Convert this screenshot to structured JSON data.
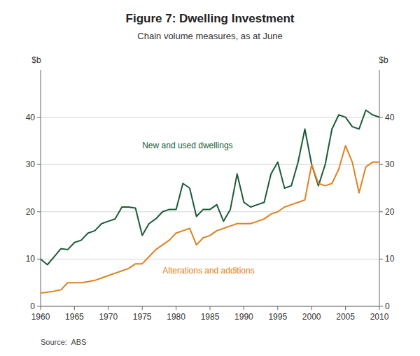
{
  "chart_data": {
    "type": "line",
    "title": "Figure 7: Dwelling Investment",
    "subtitle": "Chain volume measures, as at June",
    "source": "Source:  ABS",
    "ylabel": "$b",
    "y2label": "$b",
    "xlim": [
      1960,
      2010
    ],
    "xticks": [
      1960,
      1965,
      1970,
      1975,
      1980,
      1985,
      1990,
      1995,
      2000,
      2005,
      2010
    ],
    "ylim": [
      0,
      50
    ],
    "yticks": [
      0,
      10,
      20,
      30,
      40
    ],
    "y2lim": [
      0,
      50
    ],
    "y2ticks": [
      0,
      10,
      20,
      30,
      40
    ],
    "grid": true,
    "x": [
      1960,
      1961,
      1962,
      1963,
      1964,
      1965,
      1966,
      1967,
      1968,
      1969,
      1970,
      1971,
      1972,
      1973,
      1974,
      1975,
      1976,
      1977,
      1978,
      1979,
      1980,
      1981,
      1982,
      1983,
      1984,
      1985,
      1986,
      1987,
      1988,
      1989,
      1990,
      1991,
      1992,
      1993,
      1994,
      1995,
      1996,
      1997,
      1998,
      1999,
      2000,
      2001,
      2002,
      2003,
      2004,
      2005,
      2006,
      2007,
      2008,
      2009,
      2010
    ],
    "series": [
      {
        "color": "#1a5c38",
        "values": [
          10.0,
          8.8,
          10.5,
          12.2,
          12.0,
          13.5,
          14.0,
          15.5,
          16.0,
          17.5,
          18.0,
          18.5,
          21.0,
          21.0,
          20.8,
          15.0,
          17.5,
          18.5,
          20.0,
          20.5,
          20.5,
          26.0,
          25.0,
          19.0,
          20.5,
          20.5,
          21.5,
          18.0,
          20.5,
          28.0,
          22.0,
          21.0,
          21.5,
          22.0,
          28.0,
          30.5,
          25.0,
          25.5,
          30.5,
          37.5,
          30.0,
          25.5,
          30.0,
          37.5,
          40.5,
          40.0,
          38.0,
          37.5,
          41.5,
          40.5,
          40.0
        ]
      },
      {
        "color": "#e08020",
        "values": [
          2.8,
          3.0,
          3.2,
          3.5,
          5.0,
          5.0,
          5.0,
          5.2,
          5.5,
          6.0,
          6.5,
          7.0,
          7.5,
          8.0,
          9.0,
          9.0,
          10.5,
          12.0,
          13.0,
          14.0,
          15.5,
          16.0,
          16.5,
          13.0,
          14.5,
          15.0,
          16.0,
          16.5,
          17.0,
          17.5,
          17.5,
          17.5,
          18.0,
          18.5,
          19.5,
          20.0,
          21.0,
          21.5,
          22.0,
          22.5,
          30.0,
          26.0,
          25.5,
          26.0,
          29.0,
          34.0,
          30.5,
          24.0,
          29.5,
          30.5,
          30.5
        ]
      }
    ],
    "annotations": [
      {
        "text": "New and used dwellings",
        "x": 1975,
        "y": 33.5,
        "color": "#1a5c38"
      },
      {
        "text": "Alterations and additions",
        "x": 1978,
        "y": 7.0,
        "color": "#e08020"
      }
    ]
  }
}
